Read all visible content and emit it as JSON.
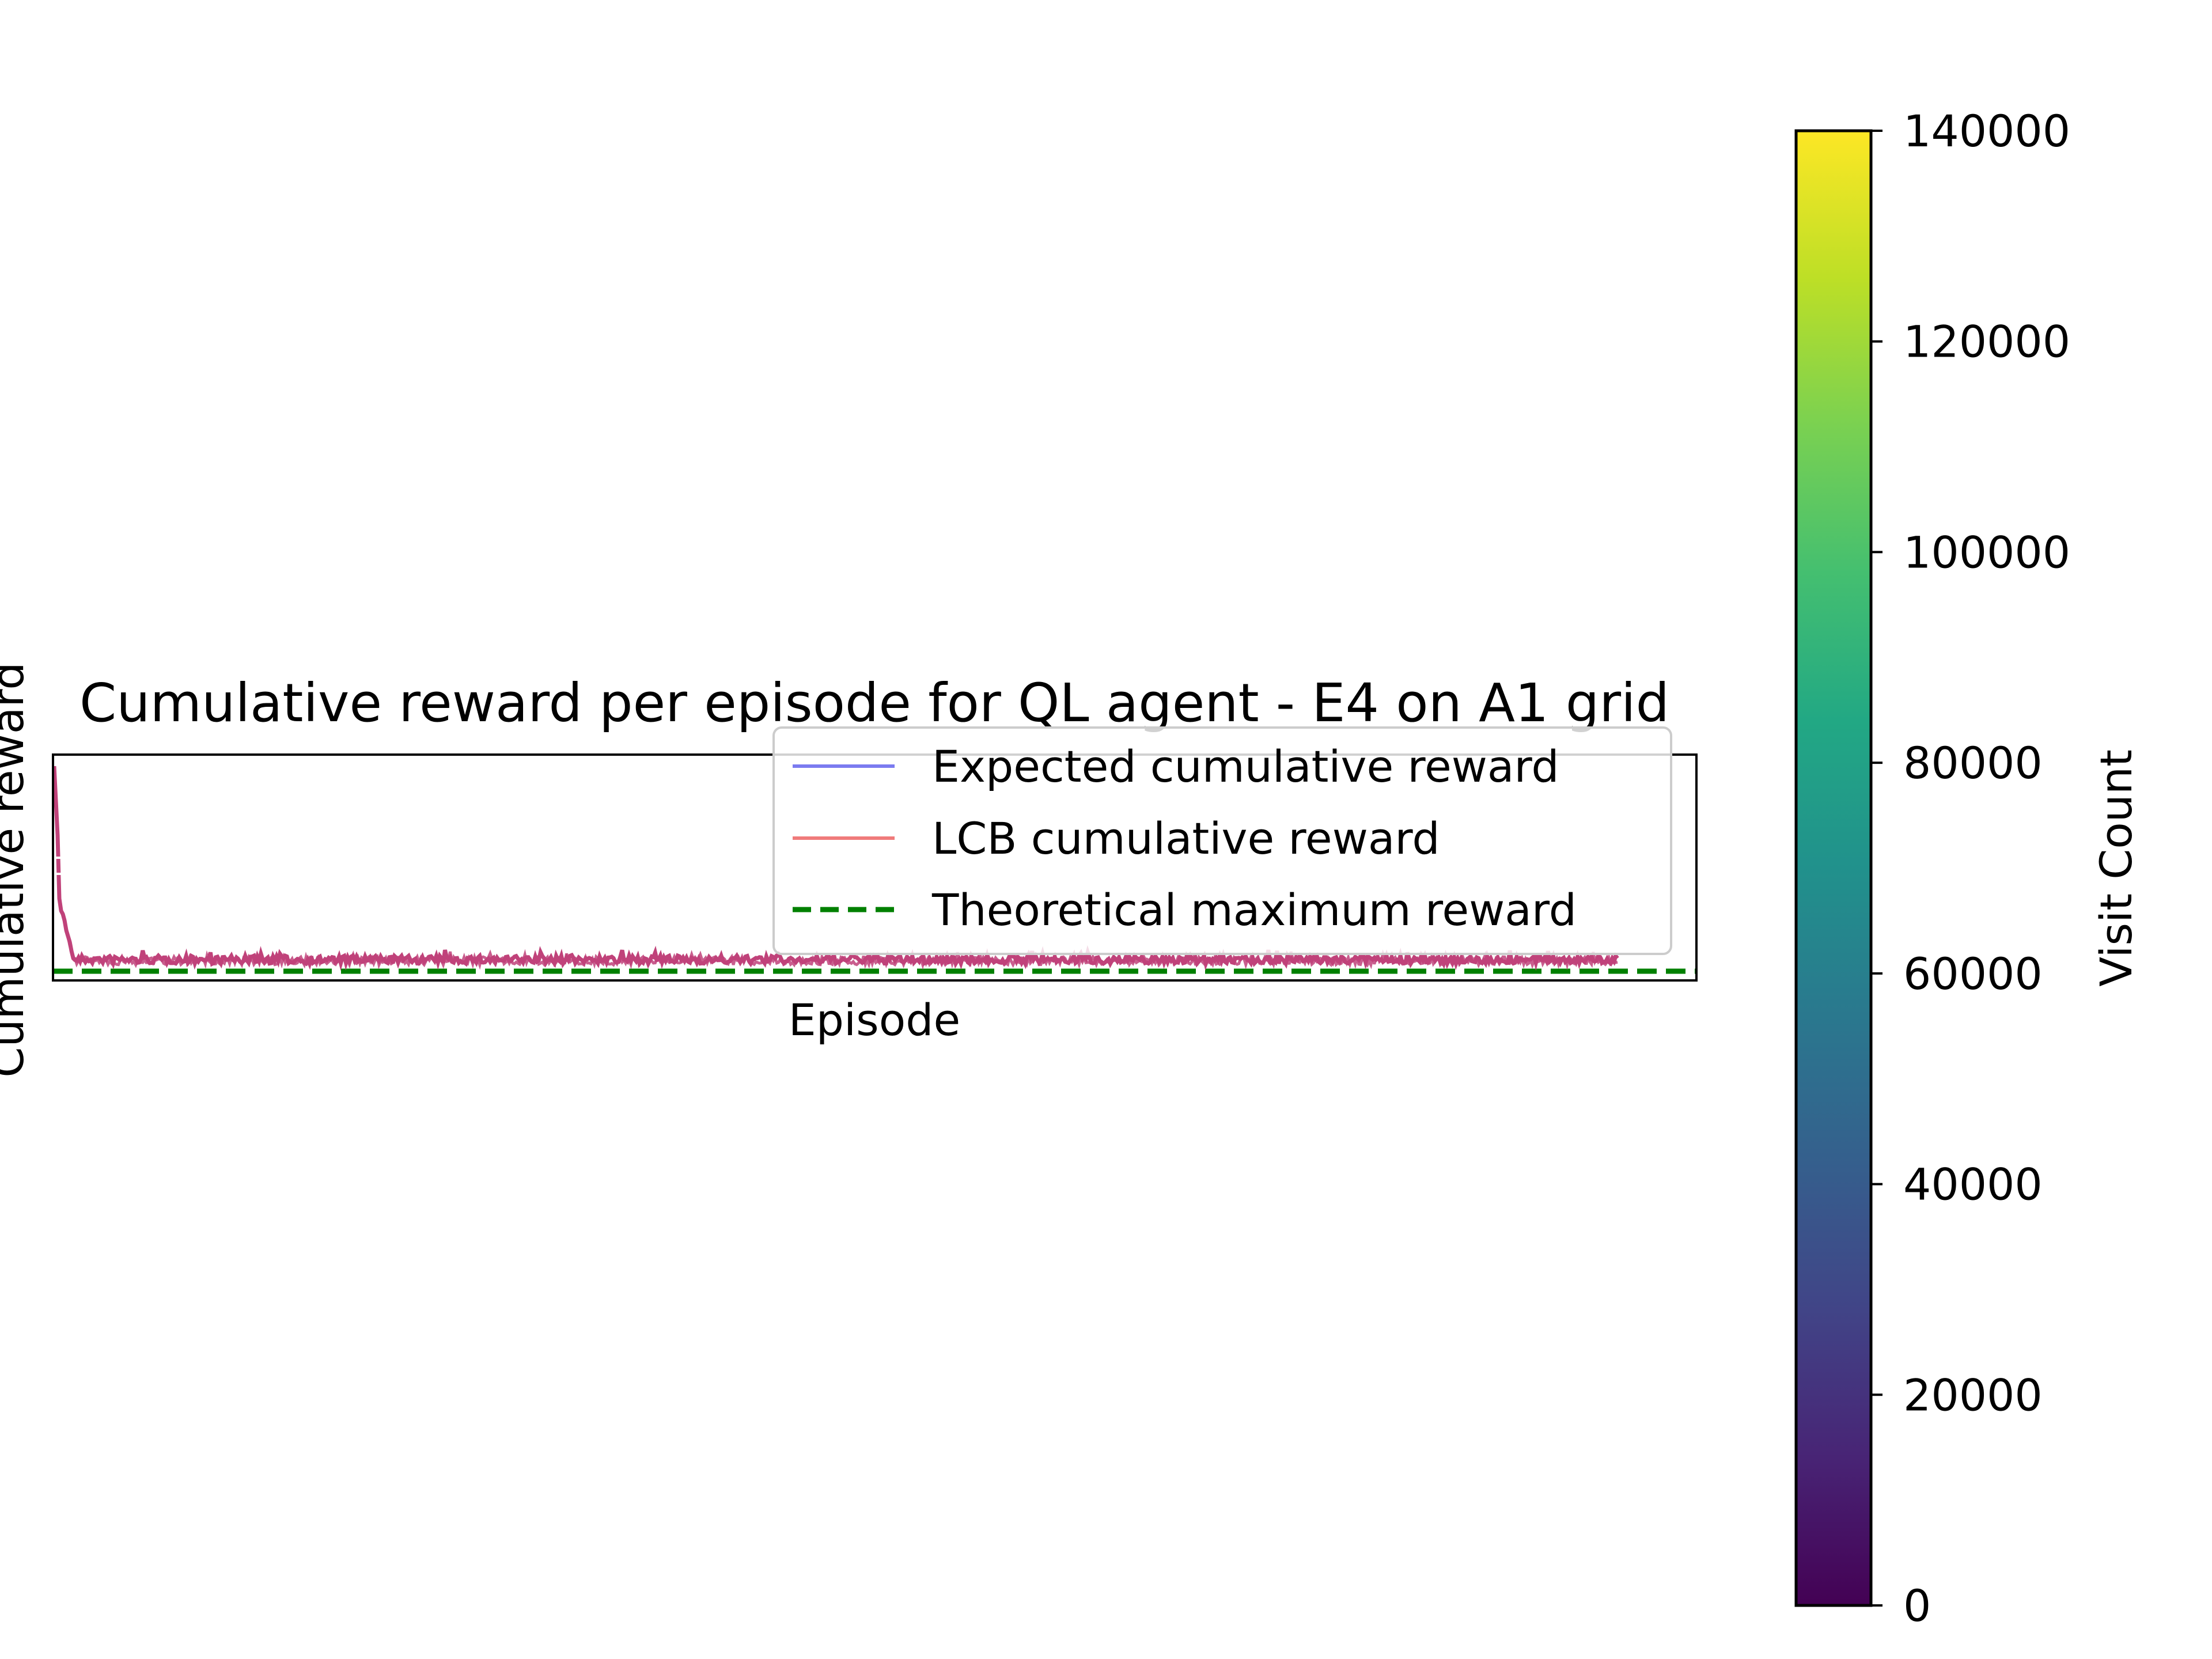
{
  "chart_data": [
    {
      "type": "line",
      "title": "Cumulative reward per episode for QL agent - E4 on A1 grid",
      "xlabel": "Episode",
      "ylabel": "Cumulative reward",
      "xticks": "none",
      "yticks": "none",
      "grid": false,
      "legend_position": "upper right",
      "series": [
        {
          "name": "Expected cumulative reward",
          "color": "#7b7bf0",
          "style": "solid",
          "description_shape": "rapid drop at the start, then a noisy flat plateau"
        },
        {
          "name": "LCB cumulative reward",
          "color": "#f07b7b",
          "style": "solid",
          "description_shape": "overlaps the expected curve"
        },
        {
          "name": "Theoretical maximum reward",
          "color": "#008000",
          "style": "dashed",
          "description_shape": "horizontal line just below the curves"
        }
      ],
      "overlap_color": "#c0427a"
    },
    {
      "type": "heatmap",
      "colorbar_label": "Visit Count",
      "colormap": "viridis",
      "vmin": 0,
      "vmax": 140000,
      "ticks": [
        0,
        20000,
        40000,
        60000,
        80000,
        100000,
        120000,
        140000
      ],
      "tick_labels": [
        "0",
        "20000",
        "40000",
        "60000",
        "80000",
        "100000",
        "120000",
        "140000"
      ]
    }
  ]
}
